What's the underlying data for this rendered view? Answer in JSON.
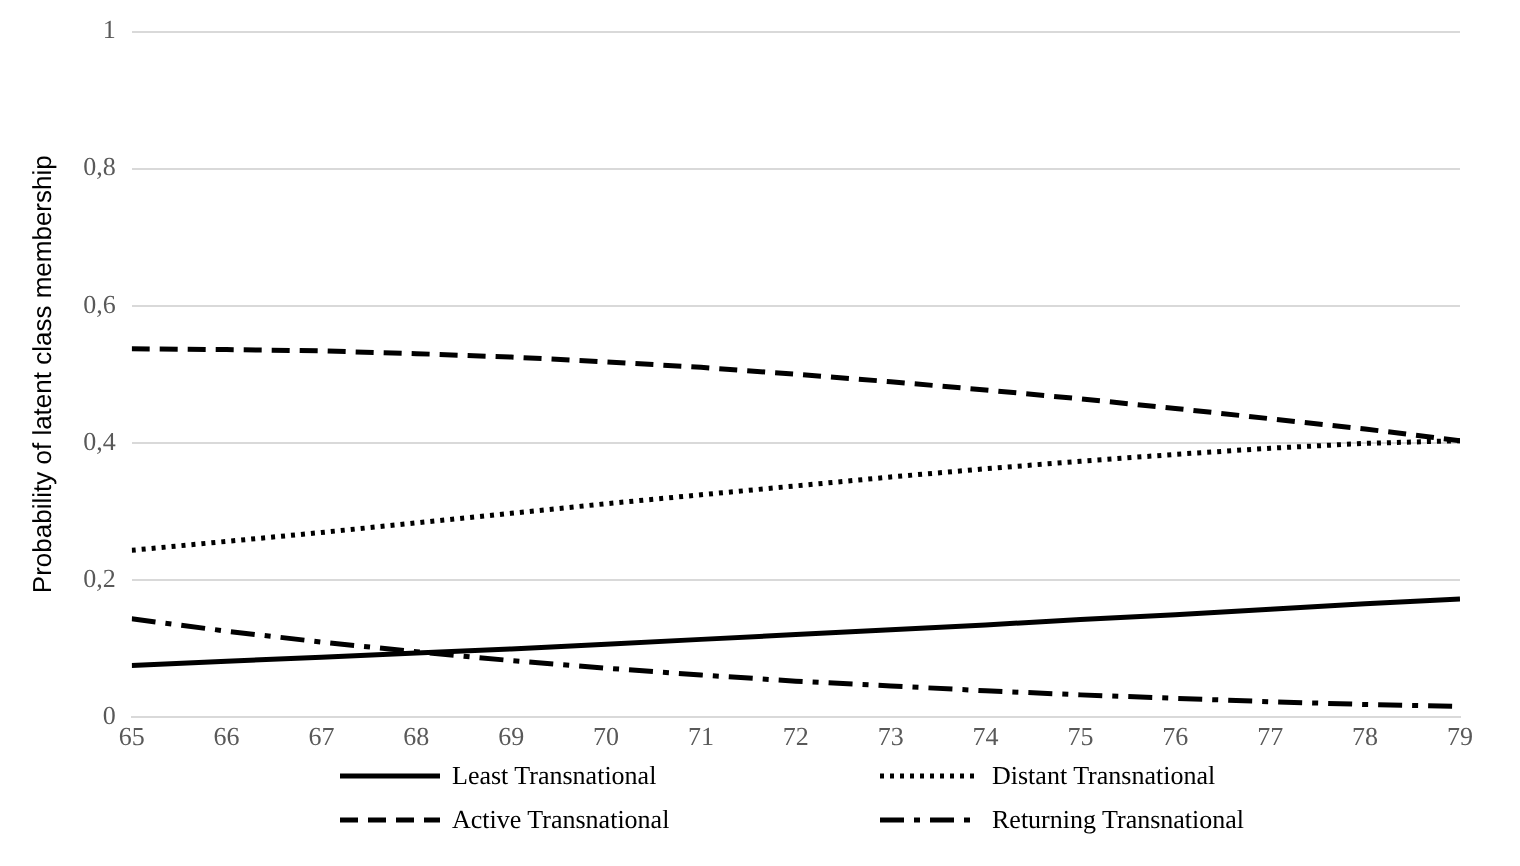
{
  "chart_data": {
    "type": "line",
    "ylabel": "Probability of latent class membership",
    "x": [
      65,
      66,
      67,
      68,
      69,
      70,
      71,
      72,
      73,
      74,
      75,
      76,
      77,
      78,
      79
    ],
    "xlim": [
      65,
      79
    ],
    "xticks": [
      65,
      66,
      67,
      68,
      69,
      70,
      71,
      72,
      73,
      74,
      75,
      76,
      77,
      78,
      79
    ],
    "ylim": [
      0,
      1
    ],
    "yticks": [
      0,
      {
        "value": 0.2,
        "label": "0,2"
      },
      {
        "value": 0.4,
        "label": "0,4"
      },
      {
        "value": 0.6,
        "label": "0,6"
      },
      {
        "value": 0.8,
        "label": "0,8"
      },
      1
    ],
    "grid": "y",
    "legend": "bottom",
    "marker": "none",
    "series": [
      {
        "name": "Least Transnational",
        "color": "#000000",
        "line_style": "solid",
        "values": [
          0.075,
          0.081,
          0.087,
          0.093,
          0.099,
          0.106,
          0.113,
          0.12,
          0.127,
          0.134,
          0.142,
          0.149,
          0.157,
          0.165,
          0.172
        ]
      },
      {
        "name": "Distant Transnational",
        "color": "#000000",
        "line_style": "dotted",
        "values": [
          0.243,
          0.256,
          0.269,
          0.283,
          0.297,
          0.311,
          0.324,
          0.337,
          0.35,
          0.362,
          0.373,
          0.383,
          0.392,
          0.399,
          0.403
        ]
      },
      {
        "name": "Active Transnational",
        "color": "#000000",
        "line_style": "dashed",
        "values": [
          0.537,
          0.536,
          0.534,
          0.53,
          0.525,
          0.518,
          0.51,
          0.5,
          0.489,
          0.477,
          0.464,
          0.45,
          0.435,
          0.42,
          0.403
        ]
      },
      {
        "name": "Returning Transnational",
        "color": "#000000",
        "line_style": "dashdot",
        "values": [
          0.143,
          0.125,
          0.109,
          0.095,
          0.082,
          0.071,
          0.061,
          0.052,
          0.045,
          0.038,
          0.032,
          0.027,
          0.022,
          0.018,
          0.015
        ]
      }
    ]
  }
}
